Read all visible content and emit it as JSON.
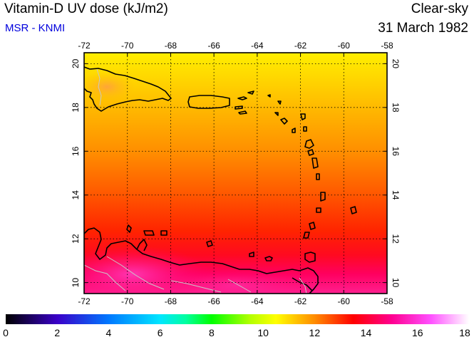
{
  "header": {
    "title": "Vitamin-D UV dose (kJ/m2)",
    "source": "MSR - KNMI",
    "condition": "Clear-sky",
    "date": "31 March 1982"
  },
  "map": {
    "longitude_ticks": [
      "-72",
      "-70",
      "-68",
      "-66",
      "-64",
      "-62",
      "-60",
      "-58"
    ],
    "latitude_ticks": [
      "10",
      "12",
      "14",
      "16",
      "18",
      "20"
    ],
    "lon_range": [
      -72,
      -58
    ],
    "lat_range": [
      9.5,
      20.5
    ],
    "grid": "dotted",
    "region": "Caribbean Sea and Lesser Antilles",
    "coastline_color": "#000000",
    "border_color": "#c8c8c8"
  },
  "colorbar": {
    "labels": [
      "0",
      "2",
      "4",
      "6",
      "8",
      "10",
      "12",
      "14",
      "16",
      "18"
    ],
    "range": [
      0,
      18
    ],
    "stops": [
      {
        "value": 0,
        "color": "#000000"
      },
      {
        "value": 2,
        "color": "#3a00c8"
      },
      {
        "value": 4,
        "color": "#0078ff"
      },
      {
        "value": 6,
        "color": "#00e6ff"
      },
      {
        "value": 7,
        "color": "#00ffa0"
      },
      {
        "value": 8,
        "color": "#00ff00"
      },
      {
        "value": 9.5,
        "color": "#b4ff00"
      },
      {
        "value": 10.5,
        "color": "#ffff00"
      },
      {
        "value": 12,
        "color": "#ff8c00"
      },
      {
        "value": 13.5,
        "color": "#ff0000"
      },
      {
        "value": 15,
        "color": "#ff0090"
      },
      {
        "value": 16.5,
        "color": "#ff50ff"
      },
      {
        "value": 18,
        "color": "#ffffff"
      }
    ]
  }
}
